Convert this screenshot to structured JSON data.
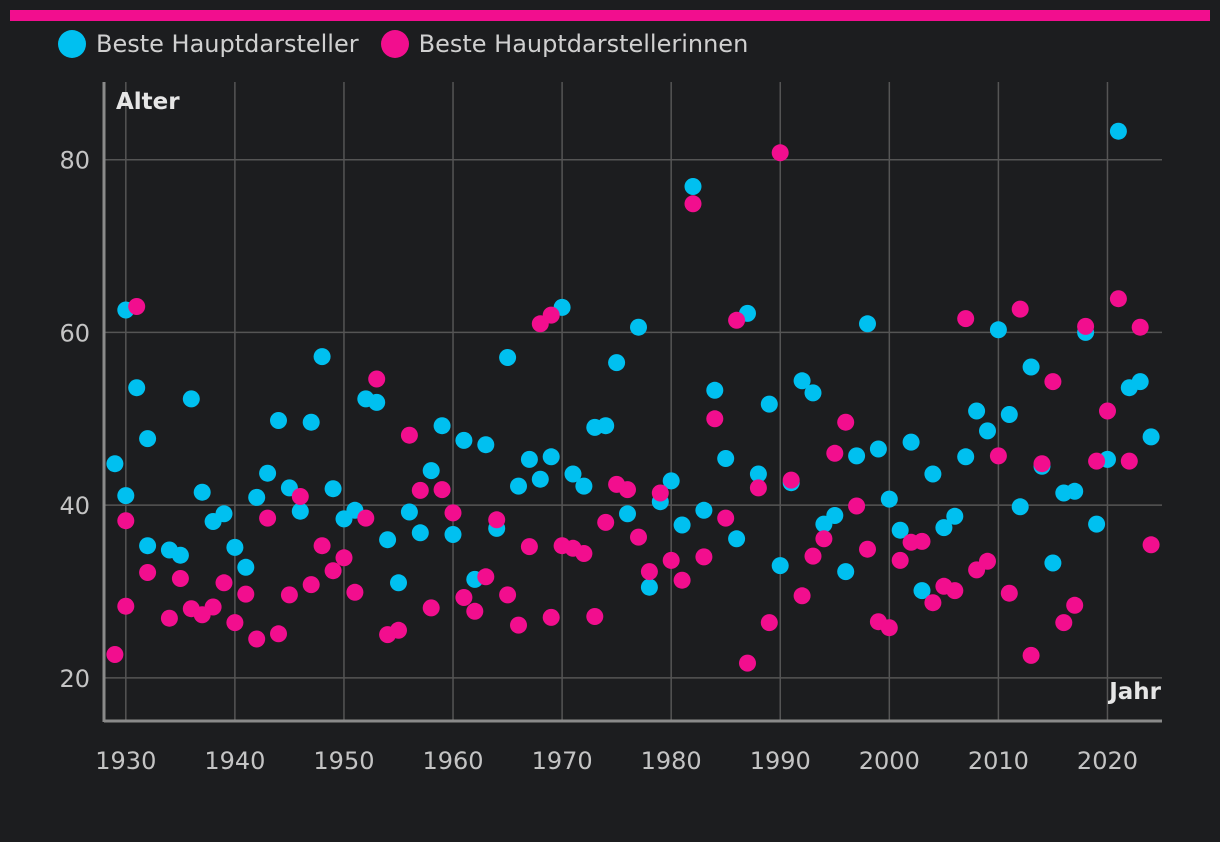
{
  "legend": [
    {
      "label": "Beste Hauptdarsteller",
      "color": "#00c0f0"
    },
    {
      "label": "Beste Hauptdarstellerinnen",
      "color": "#f20e8e"
    }
  ],
  "colors": {
    "accent": "#f20e8e",
    "background": "#1c1d1f",
    "grid": "#555555"
  },
  "chart_data": {
    "type": "scatter",
    "xlabel": "Jahr",
    "ylabel": "Alter",
    "xlim": [
      1928,
      2025
    ],
    "ylim": [
      15,
      89
    ],
    "xticks": [
      1930,
      1940,
      1950,
      1960,
      1970,
      1980,
      1990,
      2000,
      2010,
      2020
    ],
    "yticks": [
      20,
      40,
      60,
      80
    ],
    "grid": true,
    "legend_position": "top-left",
    "series": [
      {
        "name": "Beste Hauptdarsteller",
        "color": "#00c0f0",
        "points": [
          [
            1929,
            44.8
          ],
          [
            1930,
            62.6
          ],
          [
            1930,
            41.1
          ],
          [
            1931,
            53.6
          ],
          [
            1932,
            35.3
          ],
          [
            1932,
            47.7
          ],
          [
            1934,
            34.8
          ],
          [
            1935,
            34.2
          ],
          [
            1936,
            52.3
          ],
          [
            1937,
            41.5
          ],
          [
            1938,
            38.1
          ],
          [
            1939,
            39.0
          ],
          [
            1940,
            35.1
          ],
          [
            1941,
            32.8
          ],
          [
            1942,
            40.9
          ],
          [
            1943,
            43.7
          ],
          [
            1944,
            49.8
          ],
          [
            1945,
            42.0
          ],
          [
            1946,
            39.3
          ],
          [
            1947,
            49.6
          ],
          [
            1948,
            57.2
          ],
          [
            1949,
            41.9
          ],
          [
            1950,
            38.4
          ],
          [
            1951,
            39.4
          ],
          [
            1952,
            52.3
          ],
          [
            1953,
            51.9
          ],
          [
            1954,
            36.0
          ],
          [
            1955,
            31.0
          ],
          [
            1956,
            39.2
          ],
          [
            1957,
            36.8
          ],
          [
            1958,
            44.0
          ],
          [
            1959,
            49.2
          ],
          [
            1960,
            36.6
          ],
          [
            1961,
            47.5
          ],
          [
            1962,
            31.4
          ],
          [
            1963,
            47.0
          ],
          [
            1964,
            37.3
          ],
          [
            1965,
            57.1
          ],
          [
            1966,
            42.2
          ],
          [
            1967,
            45.3
          ],
          [
            1968,
            43.0
          ],
          [
            1969,
            45.6
          ],
          [
            1970,
            62.9
          ],
          [
            1971,
            43.6
          ],
          [
            1972,
            42.2
          ],
          [
            1973,
            49.0
          ],
          [
            1974,
            49.2
          ],
          [
            1975,
            56.5
          ],
          [
            1976,
            39.0
          ],
          [
            1977,
            60.6
          ],
          [
            1978,
            30.5
          ],
          [
            1979,
            40.4
          ],
          [
            1980,
            42.8
          ],
          [
            1981,
            37.7
          ],
          [
            1982,
            76.9
          ],
          [
            1983,
            39.4
          ],
          [
            1984,
            53.3
          ],
          [
            1985,
            45.4
          ],
          [
            1986,
            36.1
          ],
          [
            1987,
            62.2
          ],
          [
            1988,
            43.6
          ],
          [
            1989,
            51.7
          ],
          [
            1990,
            33.0
          ],
          [
            1991,
            42.6
          ],
          [
            1992,
            54.4
          ],
          [
            1993,
            53.0
          ],
          [
            1994,
            37.8
          ],
          [
            1995,
            38.8
          ],
          [
            1996,
            32.3
          ],
          [
            1997,
            45.7
          ],
          [
            1998,
            61.0
          ],
          [
            1999,
            46.5
          ],
          [
            2000,
            40.7
          ],
          [
            2001,
            37.1
          ],
          [
            2002,
            47.3
          ],
          [
            2003,
            30.1
          ],
          [
            2004,
            43.6
          ],
          [
            2005,
            37.4
          ],
          [
            2006,
            38.7
          ],
          [
            2007,
            45.6
          ],
          [
            2008,
            50.9
          ],
          [
            2009,
            48.6
          ],
          [
            2010,
            60.3
          ],
          [
            2011,
            50.5
          ],
          [
            2012,
            39.8
          ],
          [
            2013,
            56.0
          ],
          [
            2014,
            44.5
          ],
          [
            2015,
            33.3
          ],
          [
            2016,
            41.4
          ],
          [
            2017,
            41.6
          ],
          [
            2018,
            60.0
          ],
          [
            2019,
            37.8
          ],
          [
            2020,
            45.3
          ],
          [
            2021,
            83.3
          ],
          [
            2022,
            53.6
          ],
          [
            2023,
            54.3
          ],
          [
            2024,
            47.9
          ]
        ]
      },
      {
        "name": "Beste Hauptdarstellerinnen",
        "color": "#f20e8e",
        "points": [
          [
            1929,
            22.7
          ],
          [
            1930,
            38.2
          ],
          [
            1930,
            28.3
          ],
          [
            1931,
            63.0
          ],
          [
            1932,
            32.2
          ],
          [
            1934,
            26.9
          ],
          [
            1935,
            31.5
          ],
          [
            1936,
            28.0
          ],
          [
            1937,
            27.3
          ],
          [
            1938,
            28.2
          ],
          [
            1939,
            31.0
          ],
          [
            1940,
            26.4
          ],
          [
            1941,
            29.7
          ],
          [
            1942,
            24.5
          ],
          [
            1943,
            38.5
          ],
          [
            1944,
            25.1
          ],
          [
            1945,
            29.6
          ],
          [
            1946,
            41.0
          ],
          [
            1947,
            30.8
          ],
          [
            1948,
            35.3
          ],
          [
            1949,
            32.4
          ],
          [
            1950,
            33.9
          ],
          [
            1951,
            29.9
          ],
          [
            1952,
            38.5
          ],
          [
            1953,
            54.6
          ],
          [
            1954,
            25.0
          ],
          [
            1955,
            25.5
          ],
          [
            1956,
            48.1
          ],
          [
            1957,
            41.7
          ],
          [
            1958,
            28.1
          ],
          [
            1959,
            41.8
          ],
          [
            1960,
            39.1
          ],
          [
            1961,
            29.3
          ],
          [
            1962,
            27.7
          ],
          [
            1963,
            31.7
          ],
          [
            1964,
            38.3
          ],
          [
            1965,
            29.6
          ],
          [
            1966,
            26.1
          ],
          [
            1967,
            35.2
          ],
          [
            1968,
            61.0
          ],
          [
            1969,
            27.0
          ],
          [
            1969,
            62.0
          ],
          [
            1970,
            35.3
          ],
          [
            1971,
            35.0
          ],
          [
            1972,
            34.4
          ],
          [
            1973,
            27.1
          ],
          [
            1974,
            38.0
          ],
          [
            1975,
            42.4
          ],
          [
            1976,
            41.8
          ],
          [
            1977,
            36.3
          ],
          [
            1978,
            32.3
          ],
          [
            1979,
            41.4
          ],
          [
            1980,
            33.6
          ],
          [
            1981,
            31.3
          ],
          [
            1982,
            74.9
          ],
          [
            1983,
            34.0
          ],
          [
            1984,
            50.0
          ],
          [
            1985,
            38.5
          ],
          [
            1986,
            61.4
          ],
          [
            1987,
            21.7
          ],
          [
            1988,
            42.0
          ],
          [
            1989,
            26.4
          ],
          [
            1990,
            80.8
          ],
          [
            1991,
            42.9
          ],
          [
            1992,
            29.5
          ],
          [
            1993,
            34.1
          ],
          [
            1994,
            36.1
          ],
          [
            1995,
            46.0
          ],
          [
            1996,
            49.6
          ],
          [
            1997,
            39.9
          ],
          [
            1998,
            34.9
          ],
          [
            1999,
            26.5
          ],
          [
            2000,
            25.8
          ],
          [
            2001,
            33.6
          ],
          [
            2002,
            35.7
          ],
          [
            2003,
            35.8
          ],
          [
            2004,
            28.7
          ],
          [
            2005,
            30.6
          ],
          [
            2006,
            30.1
          ],
          [
            2007,
            61.6
          ],
          [
            2008,
            32.5
          ],
          [
            2009,
            33.5
          ],
          [
            2010,
            45.7
          ],
          [
            2011,
            29.8
          ],
          [
            2012,
            62.7
          ],
          [
            2013,
            22.6
          ],
          [
            2014,
            44.8
          ],
          [
            2015,
            54.3
          ],
          [
            2016,
            26.4
          ],
          [
            2017,
            28.4
          ],
          [
            2018,
            60.7
          ],
          [
            2019,
            45.1
          ],
          [
            2020,
            50.9
          ],
          [
            2021,
            63.9
          ],
          [
            2022,
            45.1
          ],
          [
            2023,
            60.6
          ],
          [
            2024,
            35.4
          ]
        ]
      }
    ]
  }
}
